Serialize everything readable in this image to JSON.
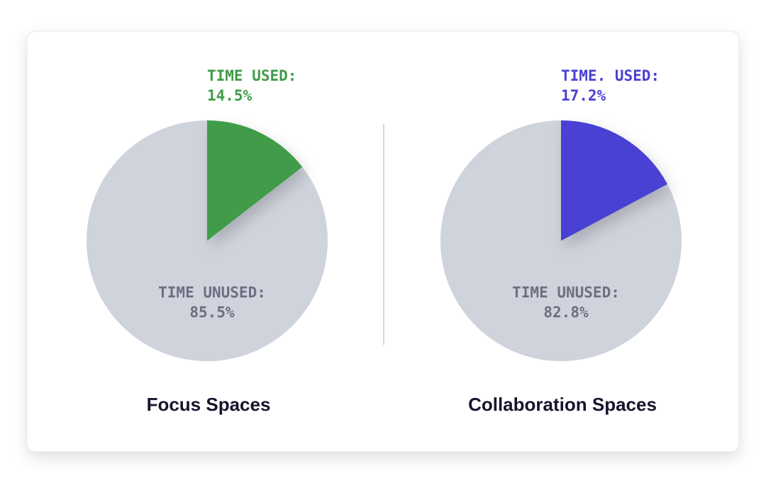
{
  "chart_data": [
    {
      "type": "pie",
      "title": "Focus Spaces",
      "categories": [
        "TIME USED:",
        "TIME UNUSED:"
      ],
      "values": [
        14.5,
        85.5
      ],
      "value_labels": [
        "14.5%",
        "85.5%"
      ],
      "colors": [
        "#3f9c4a",
        "#cfd3dc"
      ]
    },
    {
      "type": "pie",
      "title": "Collaboration Spaces",
      "categories": [
        "TIME. USED:",
        "TIME UNUSED:"
      ],
      "values": [
        17.2,
        82.8
      ],
      "value_labels": [
        "17.2%",
        "82.8%"
      ],
      "colors": [
        "#4a3fd4",
        "#cfd3dc"
      ]
    }
  ]
}
